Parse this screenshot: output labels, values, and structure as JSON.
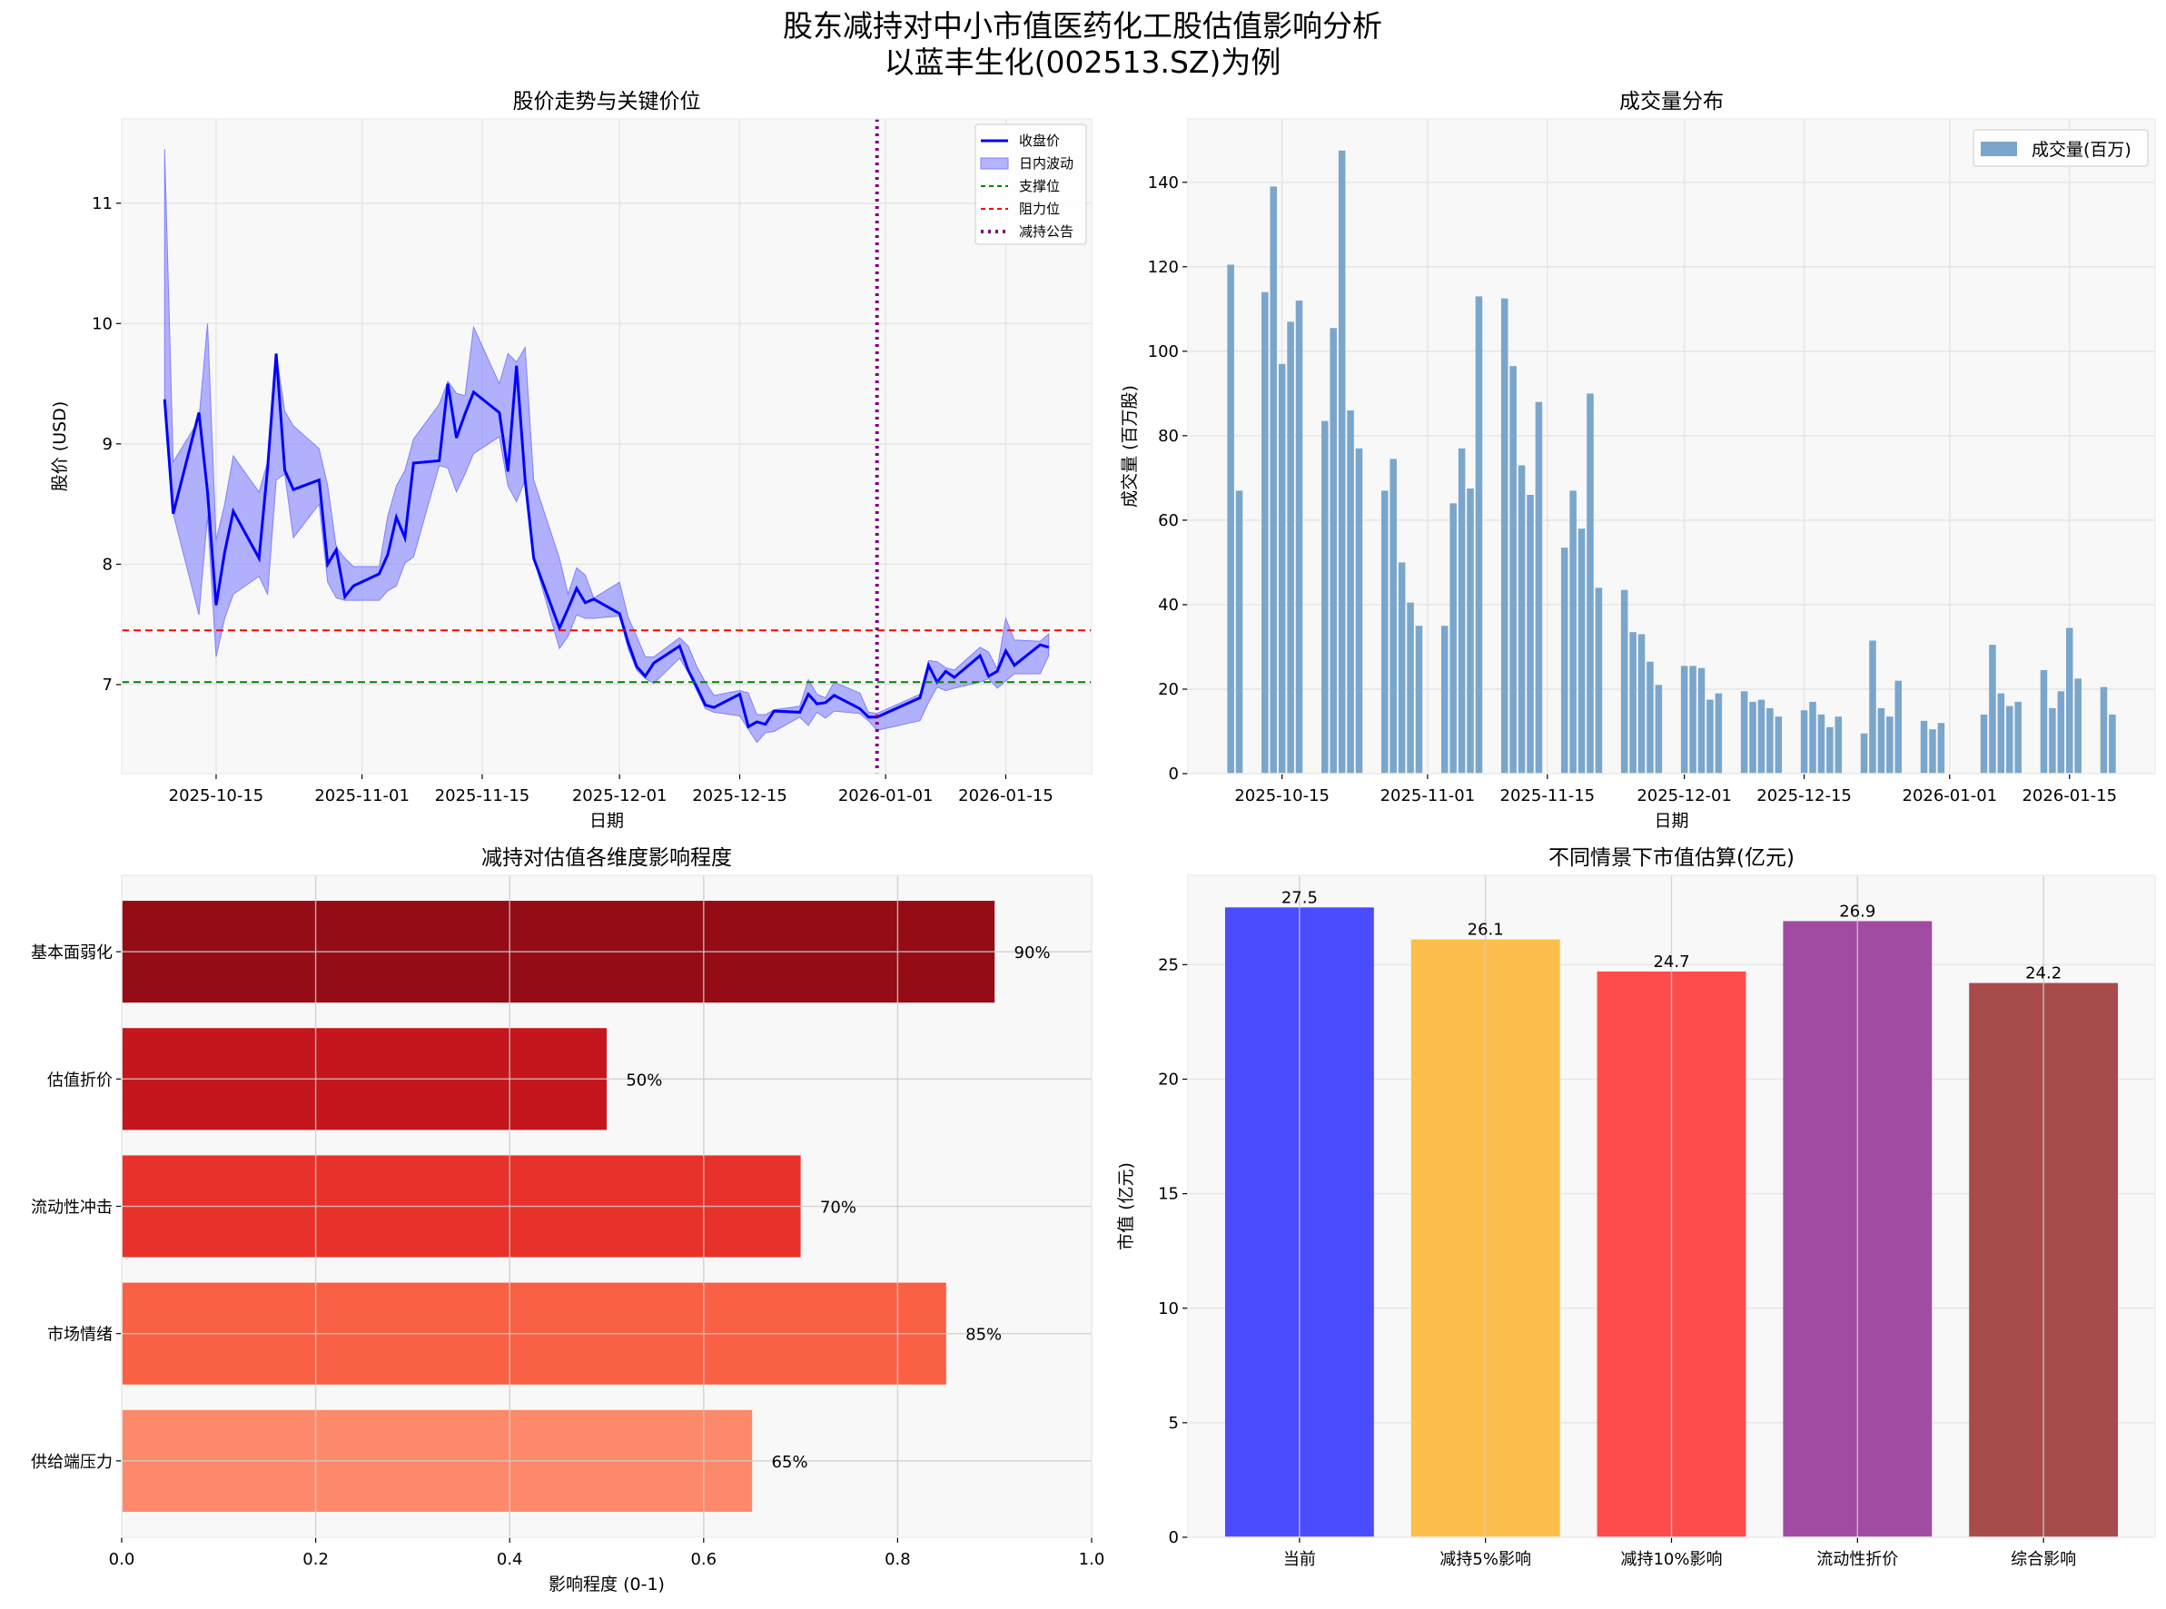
{
  "title": "股东减持对中小市值医药化工股估值影响分析",
  "subtitle": "以蓝丰生化(002513.SZ)为例",
  "chart_data": [
    {
      "type": "line",
      "title": "股价走势与关键价位",
      "xlabel": "日期",
      "ylabel": "股价 (USD)",
      "xlim": [
        "2025-10-04",
        "2026-01-25"
      ],
      "ylim": [
        6.26,
        11.7
      ],
      "xticks": [
        "2025-10-15",
        "2025-11-01",
        "2025-11-15",
        "2025-12-01",
        "2025-12-15",
        "2026-01-01",
        "2026-01-15"
      ],
      "yticks": [
        7,
        8,
        9,
        10,
        11
      ],
      "grid": true,
      "legend_position": "top-right",
      "legend": [
        "收盘价",
        "日内波动",
        "支撑位",
        "阻力位",
        "减持公告"
      ],
      "colors": {
        "close": "#0000ff",
        "band": "#8080ff",
        "support": "#008000",
        "resistance": "#ff0000",
        "announcement": "#800080"
      },
      "support": 7.02,
      "resistance": 7.45,
      "announcement_date": "2025-12-31",
      "dates": [
        "2025-10-09",
        "2025-10-10",
        "2025-10-13",
        "2025-10-14",
        "2025-10-15",
        "2025-10-16",
        "2025-10-17",
        "2025-10-20",
        "2025-10-21",
        "2025-10-22",
        "2025-10-23",
        "2025-10-24",
        "2025-10-27",
        "2025-10-28",
        "2025-10-29",
        "2025-10-30",
        "2025-10-31",
        "2025-11-03",
        "2025-11-04",
        "2025-11-05",
        "2025-11-06",
        "2025-11-07",
        "2025-11-10",
        "2025-11-11",
        "2025-11-12",
        "2025-11-13",
        "2025-11-14",
        "2025-11-17",
        "2025-11-18",
        "2025-11-19",
        "2025-11-20",
        "2025-11-21",
        "2025-11-24",
        "2025-11-25",
        "2025-11-26",
        "2025-11-27",
        "2025-11-28",
        "2025-12-01",
        "2025-12-02",
        "2025-12-03",
        "2025-12-04",
        "2025-12-05",
        "2025-12-08",
        "2025-12-09",
        "2025-12-10",
        "2025-12-11",
        "2025-12-12",
        "2025-12-15",
        "2025-12-16",
        "2025-12-17",
        "2025-12-18",
        "2025-12-19",
        "2025-12-22",
        "2025-12-23",
        "2025-12-24",
        "2025-12-25",
        "2025-12-26",
        "2025-12-29",
        "2025-12-30",
        "2025-12-31",
        "2026-01-05",
        "2026-01-06",
        "2026-01-07",
        "2026-01-08",
        "2026-01-09",
        "2026-01-12",
        "2026-01-13",
        "2026-01-14",
        "2026-01-15",
        "2026-01-16",
        "2026-01-19",
        "2026-01-20"
      ],
      "close": [
        9.37,
        8.42,
        9.26,
        8.6,
        7.66,
        8.1,
        8.44,
        8.05,
        8.8,
        9.75,
        8.78,
        8.62,
        8.7,
        8.0,
        8.12,
        7.73,
        7.82,
        7.92,
        8.08,
        8.39,
        8.22,
        8.84,
        8.86,
        9.5,
        9.05,
        9.25,
        9.43,
        9.26,
        8.77,
        9.65,
        8.7,
        8.05,
        7.47,
        7.63,
        7.8,
        7.68,
        7.71,
        7.59,
        7.35,
        7.15,
        7.07,
        7.18,
        7.32,
        7.12,
        6.98,
        6.83,
        6.81,
        6.92,
        6.65,
        6.69,
        6.67,
        6.78,
        6.77,
        6.92,
        6.84,
        6.85,
        6.91,
        6.8,
        6.73,
        6.73,
        6.89,
        7.16,
        7.02,
        7.11,
        7.06,
        7.24,
        7.07,
        7.11,
        7.28,
        7.16,
        7.33,
        7.31
      ],
      "high": [
        11.45,
        8.85,
        9.2,
        10.0,
        8.2,
        8.5,
        8.9,
        8.6,
        8.85,
        9.75,
        9.27,
        9.15,
        8.96,
        8.65,
        8.14,
        8.05,
        7.98,
        7.98,
        8.4,
        8.65,
        8.78,
        9.04,
        9.33,
        9.52,
        9.42,
        9.4,
        9.97,
        9.5,
        9.75,
        9.68,
        9.8,
        8.7,
        8.05,
        7.75,
        7.97,
        7.91,
        7.72,
        7.85,
        7.56,
        7.4,
        7.23,
        7.23,
        7.39,
        7.32,
        7.15,
        7.02,
        6.91,
        6.95,
        6.93,
        6.75,
        6.75,
        6.79,
        6.82,
        7.04,
        6.92,
        6.89,
        7.02,
        6.93,
        6.77,
        6.76,
        6.92,
        7.2,
        7.19,
        7.14,
        7.12,
        7.31,
        7.27,
        7.13,
        7.55,
        7.37,
        7.36,
        7.42
      ],
      "low": [
        9.3,
        8.42,
        7.58,
        8.4,
        7.23,
        7.55,
        7.75,
        7.9,
        7.75,
        8.7,
        8.75,
        8.22,
        8.5,
        7.85,
        7.72,
        7.7,
        7.7,
        7.7,
        7.78,
        7.82,
        8.01,
        8.06,
        8.82,
        8.8,
        8.6,
        8.75,
        8.92,
        9.06,
        8.65,
        8.52,
        8.7,
        8.05,
        7.3,
        7.4,
        7.58,
        7.55,
        7.55,
        7.57,
        7.3,
        7.12,
        7.05,
        7.01,
        7.22,
        7.1,
        6.95,
        6.8,
        6.77,
        6.74,
        6.63,
        6.52,
        6.6,
        6.61,
        6.73,
        6.66,
        6.77,
        6.72,
        6.78,
        6.76,
        6.7,
        6.62,
        6.7,
        6.85,
        6.98,
        6.95,
        6.97,
        7.02,
        7.05,
        6.97,
        7.03,
        7.09,
        7.09,
        7.24
      ]
    },
    {
      "type": "bar",
      "title": "成交量分布",
      "xlabel": "日期",
      "ylabel": "成交量 (百万股)",
      "xlim": [
        "2025-10-04",
        "2026-01-25"
      ],
      "ylim": [
        0,
        155
      ],
      "xticks": [
        "2025-10-15",
        "2025-11-01",
        "2025-11-15",
        "2025-12-01",
        "2025-12-15",
        "2026-01-01",
        "2026-01-15"
      ],
      "yticks": [
        0,
        20,
        40,
        60,
        80,
        100,
        120,
        140
      ],
      "grid": true,
      "legend_position": "top-right",
      "legend": [
        "成交量(百万)"
      ],
      "color": "#7aa6cc",
      "values": [
        120.5,
        67,
        114,
        139,
        97,
        107,
        112,
        83.5,
        105.5,
        147.5,
        86,
        77,
        67,
        74.5,
        50,
        40.5,
        35,
        35,
        64,
        77,
        67.5,
        113,
        112.5,
        96.5,
        73,
        66,
        88,
        53.5,
        67,
        58,
        90,
        44,
        43.5,
        33.5,
        33,
        26.5,
        21,
        25.5,
        25.5,
        25,
        17.5,
        19,
        19.5,
        17,
        17.5,
        15.5,
        13.5,
        15,
        17,
        14,
        11,
        13.5,
        9.5,
        31.5,
        15.5,
        13.5,
        22,
        12.5,
        10.5,
        12,
        14,
        30.5,
        19,
        16,
        17,
        24.5,
        15.5,
        19.5,
        34.5,
        22.5,
        20.5,
        14
      ]
    },
    {
      "type": "bar",
      "orientation": "horizontal",
      "title": "减持对估值各维度影响程度",
      "xlabel": "影响程度 (0-1)",
      "ylabel": "",
      "xlim": [
        0,
        1
      ],
      "xticks": [
        "0.0",
        "0.2",
        "0.4",
        "0.6",
        "0.8",
        "1.0"
      ],
      "grid": true,
      "categories": [
        "基本面弱化",
        "估值折价",
        "流动性冲击",
        "市场情绪",
        "供给端压力"
      ],
      "values": [
        0.9,
        0.5,
        0.7,
        0.85,
        0.65
      ],
      "data_labels": [
        "90%",
        "50%",
        "70%",
        "85%",
        "65%"
      ],
      "colors": [
        "#960c16",
        "#c4161c",
        "#e8312a",
        "#f96044",
        "#fc8a6a"
      ]
    },
    {
      "type": "bar",
      "title": "不同情景下市值估算(亿元)",
      "xlabel": "",
      "ylabel": "市值 (亿元)",
      "ylim": [
        0,
        28.9
      ],
      "yticks": [
        0,
        5,
        10,
        15,
        20,
        25
      ],
      "grid": true,
      "categories": [
        "当前",
        "减持5%影响",
        "减持10%影响",
        "流动性折价",
        "综合影响"
      ],
      "values": [
        27.5,
        26.1,
        24.7,
        26.9,
        24.2
      ],
      "data_labels": [
        "27.5",
        "26.1",
        "24.7",
        "26.9",
        "24.2"
      ],
      "colors": [
        "#4b4bff",
        "#fcbf4b",
        "#ff4b4b",
        "#a24ba2",
        "#a84b4b"
      ]
    }
  ]
}
